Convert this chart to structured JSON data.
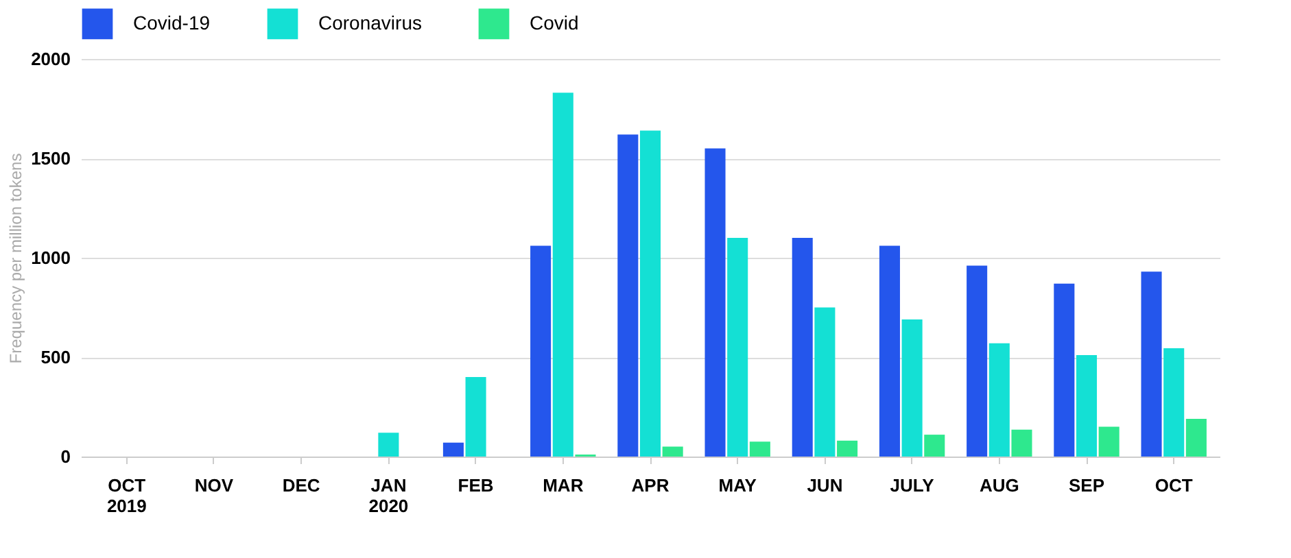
{
  "chart_data": {
    "type": "bar",
    "ylabel": "Frequency per million tokens",
    "categories": [
      "OCT\n2019",
      "NOV",
      "DEC",
      "JAN\n2020",
      "FEB",
      "MAR",
      "APR",
      "MAY",
      "JUN",
      "JULY",
      "AUG",
      "SEP",
      "OCT"
    ],
    "series": [
      {
        "name": "Covid-19",
        "color": "#2456ec",
        "values": [
          0,
          0,
          0,
          0,
          70,
          1060,
          1620,
          1550,
          1100,
          1060,
          960,
          870,
          930
        ]
      },
      {
        "name": "Coronavirus",
        "color": "#14e0d4",
        "values": [
          0,
          0,
          0,
          120,
          400,
          1830,
          1640,
          1100,
          750,
          690,
          570,
          510,
          545
        ]
      },
      {
        "name": "Covid",
        "color": "#2ee88e",
        "values": [
          0,
          0,
          0,
          0,
          0,
          10,
          50,
          75,
          80,
          110,
          135,
          150,
          190
        ]
      }
    ],
    "ylim": [
      0,
      2000
    ],
    "yticks": [
      0,
      500,
      1000,
      1500,
      2000
    ],
    "grid": "y",
    "legend": "top left"
  }
}
